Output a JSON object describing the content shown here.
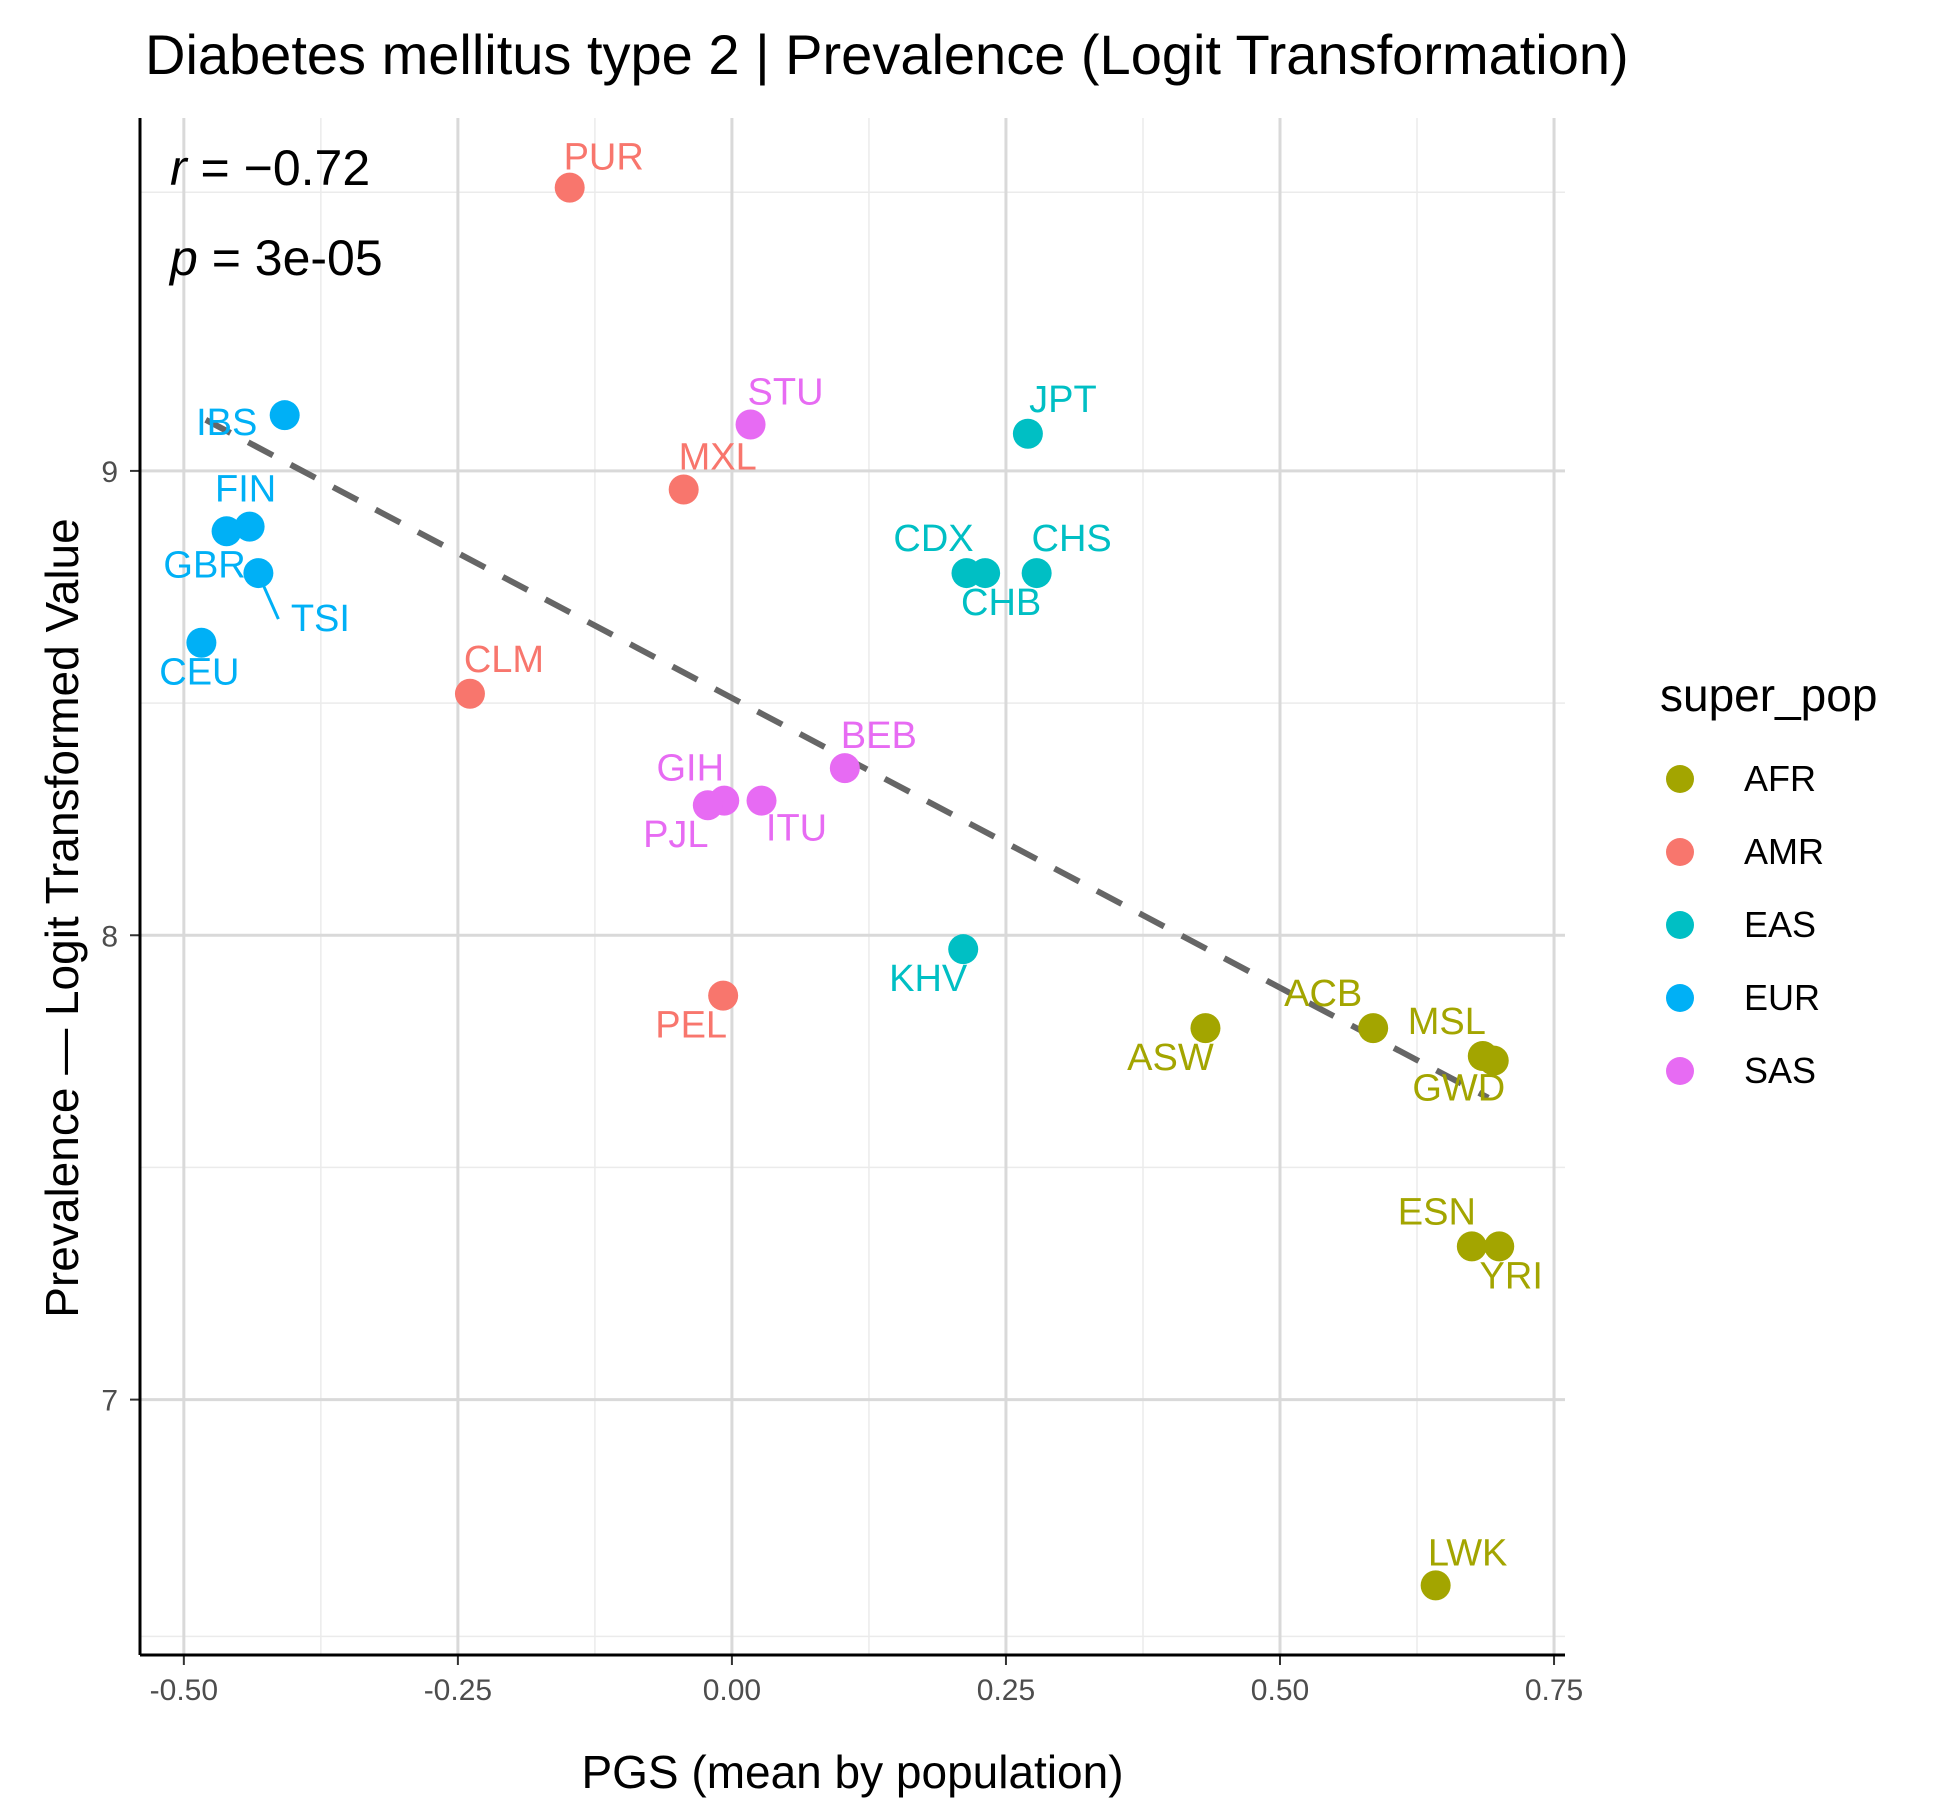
{
  "chart_data": {
    "type": "scatter",
    "title": "Diabetes mellitus type 2 | Prevalence (Logit Transformation)",
    "xlabel": "PGS (mean by population)",
    "ylabel": "Prevalence — Logit Transformed Value",
    "xlim": [
      -0.54,
      0.76
    ],
    "ylim": [
      6.45,
      9.76
    ],
    "x_ticks": [
      -0.5,
      -0.25,
      0.0,
      0.25,
      0.5,
      0.75
    ],
    "x_tick_labels": [
      "-0.50",
      "-0.25",
      "0.00",
      "0.25",
      "0.50",
      "0.75"
    ],
    "y_ticks": [
      7,
      8,
      9
    ],
    "y_tick_labels": [
      "7",
      "8",
      "9"
    ],
    "grid": true,
    "legend": {
      "title": "super_pop",
      "placement": "right",
      "entries": [
        {
          "name": "AFR",
          "color": "#A3A500"
        },
        {
          "name": "AMR",
          "color": "#F8766D"
        },
        {
          "name": "EAS",
          "color": "#00BFC4"
        },
        {
          "name": "EUR",
          "color": "#00B0F6"
        },
        {
          "name": "SAS",
          "color": "#E76BF3"
        }
      ]
    },
    "annotations": [
      {
        "var": "r",
        "sep": " = ",
        "value": "−0.72"
      },
      {
        "var": "p",
        "sep": " = ",
        "value": "3e-05"
      }
    ],
    "trendline": {
      "style": "dashed",
      "color": "#666666",
      "x": [
        -0.48,
        0.69
      ],
      "y": [
        9.11,
        7.65
      ]
    },
    "points": [
      {
        "label": "PUR",
        "super_pop": "AMR",
        "x": -0.148,
        "y": 9.61
      },
      {
        "label": "MXL",
        "super_pop": "AMR",
        "x": -0.044,
        "y": 8.96
      },
      {
        "label": "CLM",
        "super_pop": "AMR",
        "x": -0.239,
        "y": 8.52
      },
      {
        "label": "PEL",
        "super_pop": "AMR",
        "x": -0.008,
        "y": 7.87
      },
      {
        "label": "IBS",
        "super_pop": "EUR",
        "x": -0.408,
        "y": 9.12
      },
      {
        "label": "FIN",
        "super_pop": "EUR",
        "x": -0.44,
        "y": 8.88
      },
      {
        "label": "GBR",
        "super_pop": "EUR",
        "x": -0.461,
        "y": 8.87
      },
      {
        "label": "TSI",
        "super_pop": "EUR",
        "x": -0.432,
        "y": 8.78
      },
      {
        "label": "CEU",
        "super_pop": "EUR",
        "x": -0.484,
        "y": 8.63
      },
      {
        "label": "STU",
        "super_pop": "SAS",
        "x": 0.017,
        "y": 9.1
      },
      {
        "label": "BEB",
        "super_pop": "SAS",
        "x": 0.103,
        "y": 8.36
      },
      {
        "label": "GIH",
        "super_pop": "SAS",
        "x": -0.007,
        "y": 8.29
      },
      {
        "label": "PJL",
        "super_pop": "SAS",
        "x": -0.022,
        "y": 8.28
      },
      {
        "label": "ITU",
        "super_pop": "SAS",
        "x": 0.027,
        "y": 8.29
      },
      {
        "label": "JPT",
        "super_pop": "EAS",
        "x": 0.27,
        "y": 9.08
      },
      {
        "label": "CDX",
        "super_pop": "EAS",
        "x": 0.214,
        "y": 8.78
      },
      {
        "label": "CHB",
        "super_pop": "EAS",
        "x": 0.231,
        "y": 8.78
      },
      {
        "label": "CHS",
        "super_pop": "EAS",
        "x": 0.278,
        "y": 8.78
      },
      {
        "label": "KHV",
        "super_pop": "EAS",
        "x": 0.211,
        "y": 7.97
      },
      {
        "label": "ASW",
        "super_pop": "AFR",
        "x": 0.432,
        "y": 7.8
      },
      {
        "label": "ACB",
        "super_pop": "AFR",
        "x": 0.585,
        "y": 7.8
      },
      {
        "label": "MSL",
        "super_pop": "AFR",
        "x": 0.685,
        "y": 7.74
      },
      {
        "label": "GWD",
        "super_pop": "AFR",
        "x": 0.695,
        "y": 7.73
      },
      {
        "label": "ESN",
        "super_pop": "AFR",
        "x": 0.675,
        "y": 7.33
      },
      {
        "label": "YRI",
        "super_pop": "AFR",
        "x": 0.7,
        "y": 7.33
      },
      {
        "label": "LWK",
        "super_pop": "AFR",
        "x": 0.642,
        "y": 6.6
      }
    ]
  }
}
